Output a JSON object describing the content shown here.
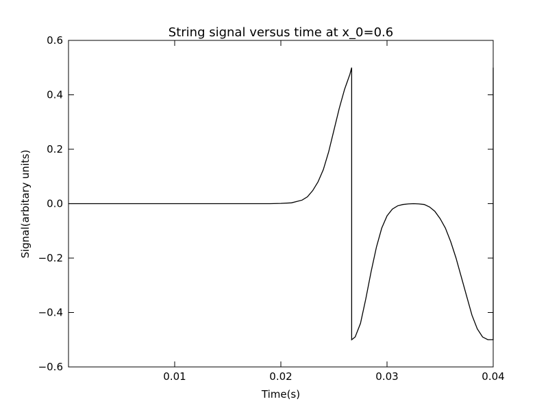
{
  "chart_data": {
    "type": "line",
    "title": "String signal versus time at x_0=0.6",
    "xlabel": "Time(s)",
    "ylabel": "Signal(arbitary units)",
    "xlim": [
      0.0,
      0.04
    ],
    "ylim": [
      -0.6,
      0.6
    ],
    "x_ticks": [
      0.01,
      0.02,
      0.03,
      0.04
    ],
    "x_tick_labels": [
      "0.01",
      "0.02",
      "0.03",
      "0.04"
    ],
    "y_ticks": [
      -0.6,
      -0.4,
      -0.2,
      0.0,
      0.2,
      0.4,
      0.6
    ],
    "y_tick_labels": [
      "−0.6",
      "−0.4",
      "−0.2",
      "0.0",
      "0.2",
      "0.4",
      "0.6"
    ],
    "grid": false,
    "line_color": "#000000",
    "series": [
      {
        "x": [
          0.0,
          0.005,
          0.01,
          0.015,
          0.019,
          0.02,
          0.021,
          0.022,
          0.0225,
          0.023,
          0.0235,
          0.024,
          0.0245,
          0.025,
          0.0255,
          0.026,
          0.0265,
          0.02667,
          0.02667,
          0.027,
          0.0275,
          0.028,
          0.0285,
          0.029,
          0.0295,
          0.03,
          0.0305,
          0.031,
          0.0315,
          0.032,
          0.0325,
          0.033,
          0.0335,
          0.034,
          0.0345,
          0.035,
          0.0355,
          0.036,
          0.0365,
          0.037,
          0.0375,
          0.038,
          0.0385,
          0.039,
          0.0395,
          0.03985,
          0.04,
          0.04
        ],
        "y": [
          0.0,
          0.0,
          0.0,
          0.0,
          0.0,
          0.001,
          0.003,
          0.013,
          0.025,
          0.048,
          0.08,
          0.125,
          0.19,
          0.27,
          0.35,
          0.42,
          0.475,
          0.5,
          -0.5,
          -0.49,
          -0.44,
          -0.35,
          -0.25,
          -0.16,
          -0.09,
          -0.045,
          -0.02,
          -0.008,
          -0.003,
          -0.001,
          0.0,
          -0.001,
          -0.003,
          -0.012,
          -0.028,
          -0.055,
          -0.09,
          -0.14,
          -0.2,
          -0.27,
          -0.34,
          -0.41,
          -0.46,
          -0.49,
          -0.5,
          -0.5,
          -0.5,
          0.5
        ]
      }
    ]
  }
}
